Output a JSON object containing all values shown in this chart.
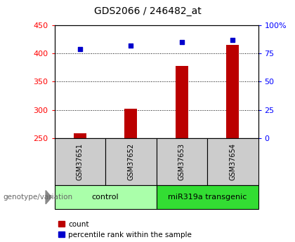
{
  "title": "GDS2066 / 246482_at",
  "samples": [
    "GSM37651",
    "GSM37652",
    "GSM37653",
    "GSM37654"
  ],
  "counts": [
    258,
    302,
    378,
    415
  ],
  "percentile_ranks": [
    79,
    82,
    85,
    87
  ],
  "group_labels": [
    "control",
    "miR319a transgenic"
  ],
  "group_colors": [
    "#aaffaa",
    "#33dd33"
  ],
  "ylim_left": [
    250,
    450
  ],
  "ylim_right": [
    0,
    100
  ],
  "yticks_left": [
    250,
    300,
    350,
    400,
    450
  ],
  "yticks_right": [
    0,
    25,
    50,
    75,
    100
  ],
  "bar_color": "#bb0000",
  "scatter_color": "#0000cc",
  "bar_bottom": 250,
  "xlabel_text": "genotype/variation",
  "legend_count": "count",
  "legend_percentile": "percentile rank within the sample",
  "title_fontsize": 10,
  "tick_fontsize": 8,
  "sample_label_fontsize": 7,
  "group_label_fontsize": 8,
  "legend_fontsize": 7.5,
  "bar_width": 0.25
}
